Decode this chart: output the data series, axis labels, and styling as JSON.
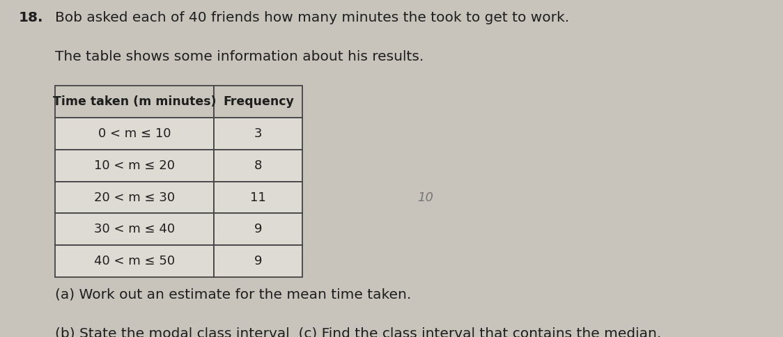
{
  "background_color": "#c8c4bc",
  "question_number": "18.",
  "line1": "Bob asked each of 40 friends how many minutes the took to get to work.",
  "line2": "The table shows some information about his results.",
  "table_header": [
    "Time taken (m minutes)",
    "Frequency"
  ],
  "table_rows": [
    [
      "0 < m ≤ 10",
      "3"
    ],
    [
      "10 < m ≤ 20",
      "8"
    ],
    [
      "20 < m ≤ 30",
      "11"
    ],
    [
      "30 < m ≤ 40",
      "9"
    ],
    [
      "40 < m ≤ 50",
      "9"
    ]
  ],
  "part_a": "(a) Work out an estimate for the mean time taken.",
  "part_bc": "(b) State the modal class interval  (c) Find the class interval that contains the median.",
  "watermark": "10",
  "text_color": "#1e1e1e",
  "table_bg": "#dedad4",
  "table_border": "#444444",
  "header_bg": "#cac6be",
  "font_size_body": 14.5,
  "font_size_table_header": 12.5,
  "font_size_table_cell": 13,
  "font_size_qnum": 14.5,
  "font_size_parts": 14.5
}
